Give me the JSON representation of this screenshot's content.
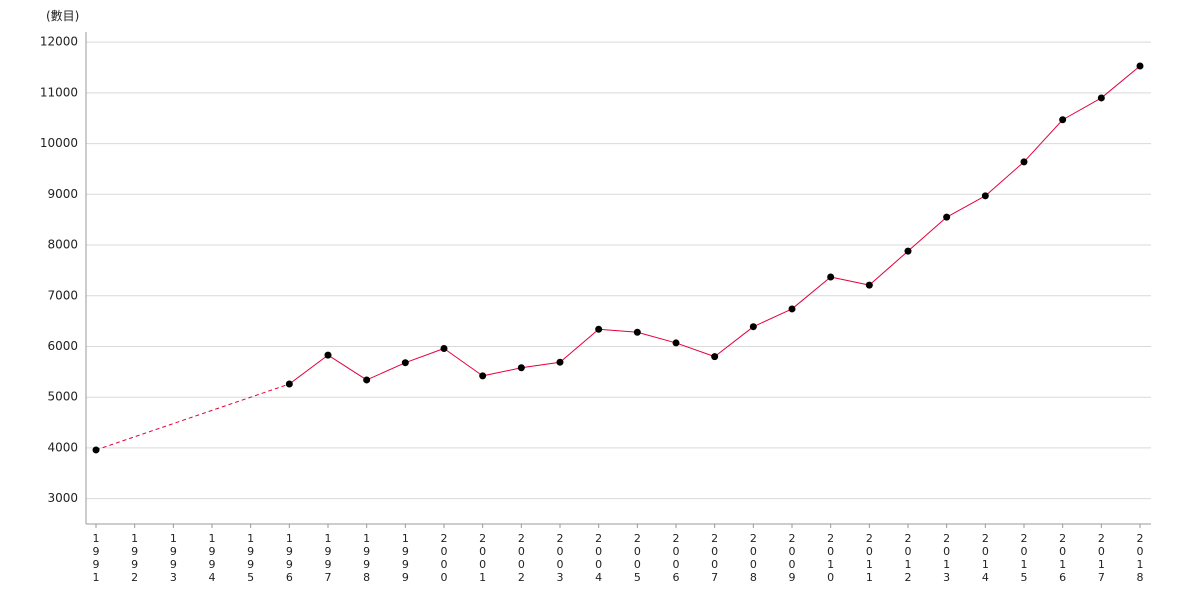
{
  "chart_data": {
    "type": "line",
    "ylabel": "(數目)",
    "ylim": [
      2500,
      12200
    ],
    "yticks": [
      3000,
      4000,
      5000,
      6000,
      7000,
      8000,
      9000,
      10000,
      11000,
      12000
    ],
    "categories": [
      "1991",
      "1992",
      "1993",
      "1994",
      "1995",
      "1996",
      "1997",
      "1998",
      "1999",
      "2000",
      "2001",
      "2002",
      "2003",
      "2004",
      "2005",
      "2006",
      "2007",
      "2008",
      "2009",
      "2010",
      "2011",
      "2012",
      "2013",
      "2014",
      "2015",
      "2016",
      "2017",
      "2018"
    ],
    "series": [
      {
        "values": [
          3960,
          null,
          null,
          null,
          null,
          5260,
          5830,
          5340,
          5680,
          5960,
          5420,
          5580,
          5690,
          6340,
          6280,
          6070,
          5800,
          6390,
          6740,
          7370,
          7210,
          7880,
          8550,
          8970,
          9640,
          10470,
          10900,
          11530
        ],
        "line_color": "#e4003b",
        "marker_color": "#000000"
      }
    ],
    "grid": "horizontal",
    "missing_values": "dashed connector"
  }
}
